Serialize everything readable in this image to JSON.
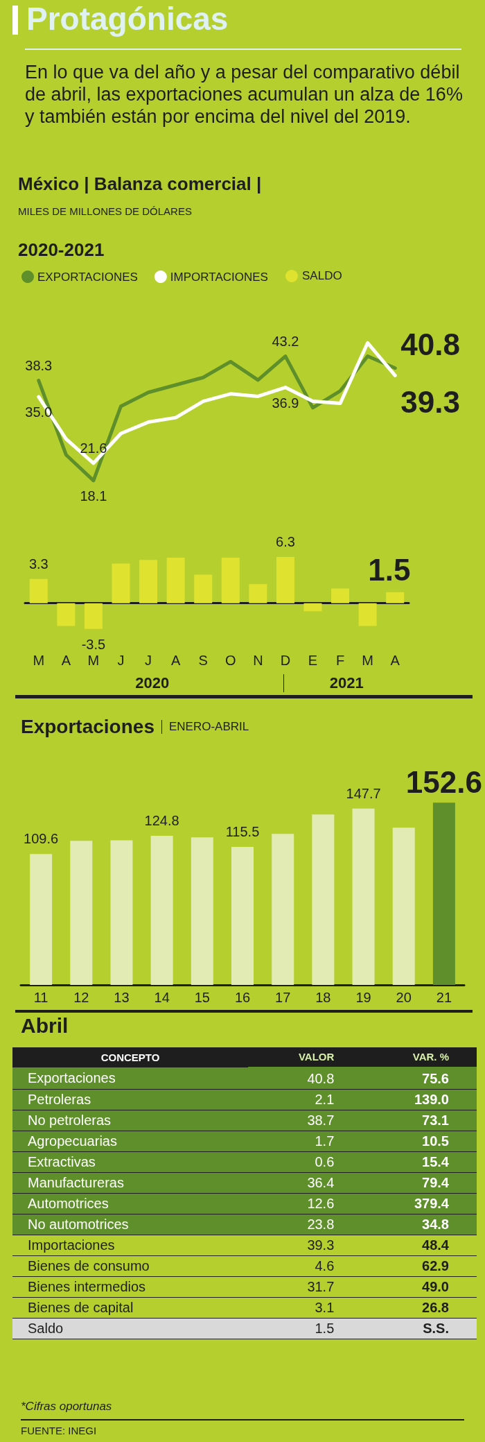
{
  "chart_data": [
    {
      "type": "line",
      "title": "Protagónicas",
      "subtitle": "En lo que va del año y a pesar del comparativo débil de abril, las exportaciones acumulan un alza de 16% y también están por encima del nivel del 2019.",
      "annotations": [
        "México | Balanza comercial |",
        "MILES DE MILLONES DE DÓLARES",
        "2020-2021"
      ],
      "categories": [
        null,
        null,
        null,
        null,
        null,
        null,
        null,
        null,
        null,
        null,
        null,
        null,
        null,
        null
      ],
      "tick_labels": false,
      "legend": "top left",
      "marker": "none",
      "series": [
        {
          "name": "EXPORTACIONES",
          "color": "#5e8f2a",
          "values": [
            38.3,
            23.3,
            18.1,
            33.1,
            35.9,
            37.4,
            38.9,
            42.1,
            38.4,
            43.2,
            32.8,
            36.2,
            43.2,
            40.8
          ],
          "value_labels": [
            "38.3",
            null,
            "18.1",
            null,
            null,
            null,
            null,
            null,
            null,
            "43.2",
            null,
            null,
            null,
            "40.8"
          ]
        },
        {
          "name": "IMPORTACIONES",
          "color": "#ffffff",
          "values": [
            35.0,
            26.5,
            21.6,
            27.6,
            29.9,
            30.8,
            34.1,
            35.6,
            35.1,
            36.9,
            34.1,
            33.7,
            45.9,
            39.3
          ],
          "value_labels": [
            "35.0",
            null,
            "21.6",
            null,
            null,
            null,
            null,
            null,
            null,
            "36.9",
            null,
            null,
            null,
            "39.3"
          ]
        }
      ]
    },
    {
      "type": "bar",
      "categories": [
        "M",
        "A",
        "M",
        "J",
        "J",
        "A",
        "S",
        "O",
        "N",
        "D",
        "E",
        "F",
        "M",
        "A"
      ],
      "annotations": [
        "2020",
        "2021"
      ],
      "legend": "top right",
      "tick_labels": "x",
      "series": [
        {
          "name": "SALDO",
          "color": "#dfe22f",
          "values": [
            3.3,
            -3.1,
            -3.5,
            5.4,
            5.9,
            6.2,
            3.9,
            6.2,
            2.6,
            6.3,
            -1.1,
            2.0,
            -3.1,
            1.5
          ],
          "value_labels": [
            "3.3",
            null,
            "-3.5",
            null,
            null,
            null,
            null,
            null,
            null,
            "6.3",
            null,
            null,
            null,
            "1.5"
          ]
        }
      ]
    },
    {
      "type": "bar",
      "title": "Exportaciones",
      "subtitle": "ENERO-ABRIL",
      "categories": [
        "11",
        "12",
        "13",
        "14",
        "15",
        "16",
        "17",
        "18",
        "19",
        "20",
        "21"
      ],
      "values": [
        109.6,
        120.6,
        121.1,
        124.8,
        123.5,
        115.5,
        126.5,
        142.7,
        147.7,
        131.6,
        152.6
      ],
      "colors": [
        "#e2ebb4",
        "#e2ebb4",
        "#e2ebb4",
        "#e2ebb4",
        "#e2ebb4",
        "#e2ebb4",
        "#e2ebb4",
        "#e2ebb4",
        "#e2ebb4",
        "#e2ebb4",
        "#5e8f2a"
      ],
      "value_labels": [
        "109.6",
        null,
        null,
        "124.8",
        null,
        "115.5",
        null,
        null,
        "147.7",
        null,
        "152.6"
      ],
      "tick_labels": "x"
    },
    {
      "type": "other",
      "title": "Abril",
      "xlabel": "CONCEPTO",
      "data_labels": true,
      "categories": [
        "Exportaciones",
        "Petroleras",
        "No petroleras",
        "Agropecuarias",
        "Extractivas",
        "Manufactureras",
        "Automotrices",
        "No automotrices",
        "Importaciones",
        "Bienes de consumo",
        "Bienes intermedios",
        "Bienes de capital",
        "Saldo"
      ],
      "series": [
        {
          "name": "VALOR",
          "colors": [
            "#5e8f2a",
            "#5e8f2a",
            "#5e8f2a",
            "#5e8f2a",
            "#5e8f2a",
            "#5e8f2a",
            "#5e8f2a",
            "#5e8f2a",
            "#b5cf2e",
            "#b5cf2e",
            "#b5cf2e",
            "#b5cf2e",
            "#d9d9d9"
          ],
          "values": [
            40.8,
            2.1,
            38.7,
            1.7,
            0.6,
            36.4,
            12.6,
            23.8,
            39.3,
            4.6,
            31.7,
            3.1,
            1.5
          ]
        },
        {
          "name": "VAR. %",
          "colors": [
            "#5e8f2a",
            "#5e8f2a",
            "#5e8f2a",
            "#5e8f2a",
            "#5e8f2a",
            "#5e8f2a",
            "#5e8f2a",
            "#5e8f2a",
            "#b5cf2e",
            "#b5cf2e",
            "#b5cf2e",
            "#b5cf2e",
            "#d9d9d9"
          ],
          "values": [
            75.6,
            139.0,
            73.1,
            10.5,
            15.4,
            79.4,
            379.4,
            34.8,
            48.4,
            62.9,
            49.0,
            26.8,
            null
          ],
          "value_labels": [
            "75.6",
            "139.0",
            "73.1",
            "10.5",
            "15.4",
            "79.4",
            "379.4",
            "34.8",
            "48.4",
            "62.9",
            "49.0",
            "26.8",
            "S.S."
          ]
        }
      ],
      "annotations": [
        "*Cifras oportunas",
        "FUENTE: INEGI"
      ]
    }
  ]
}
